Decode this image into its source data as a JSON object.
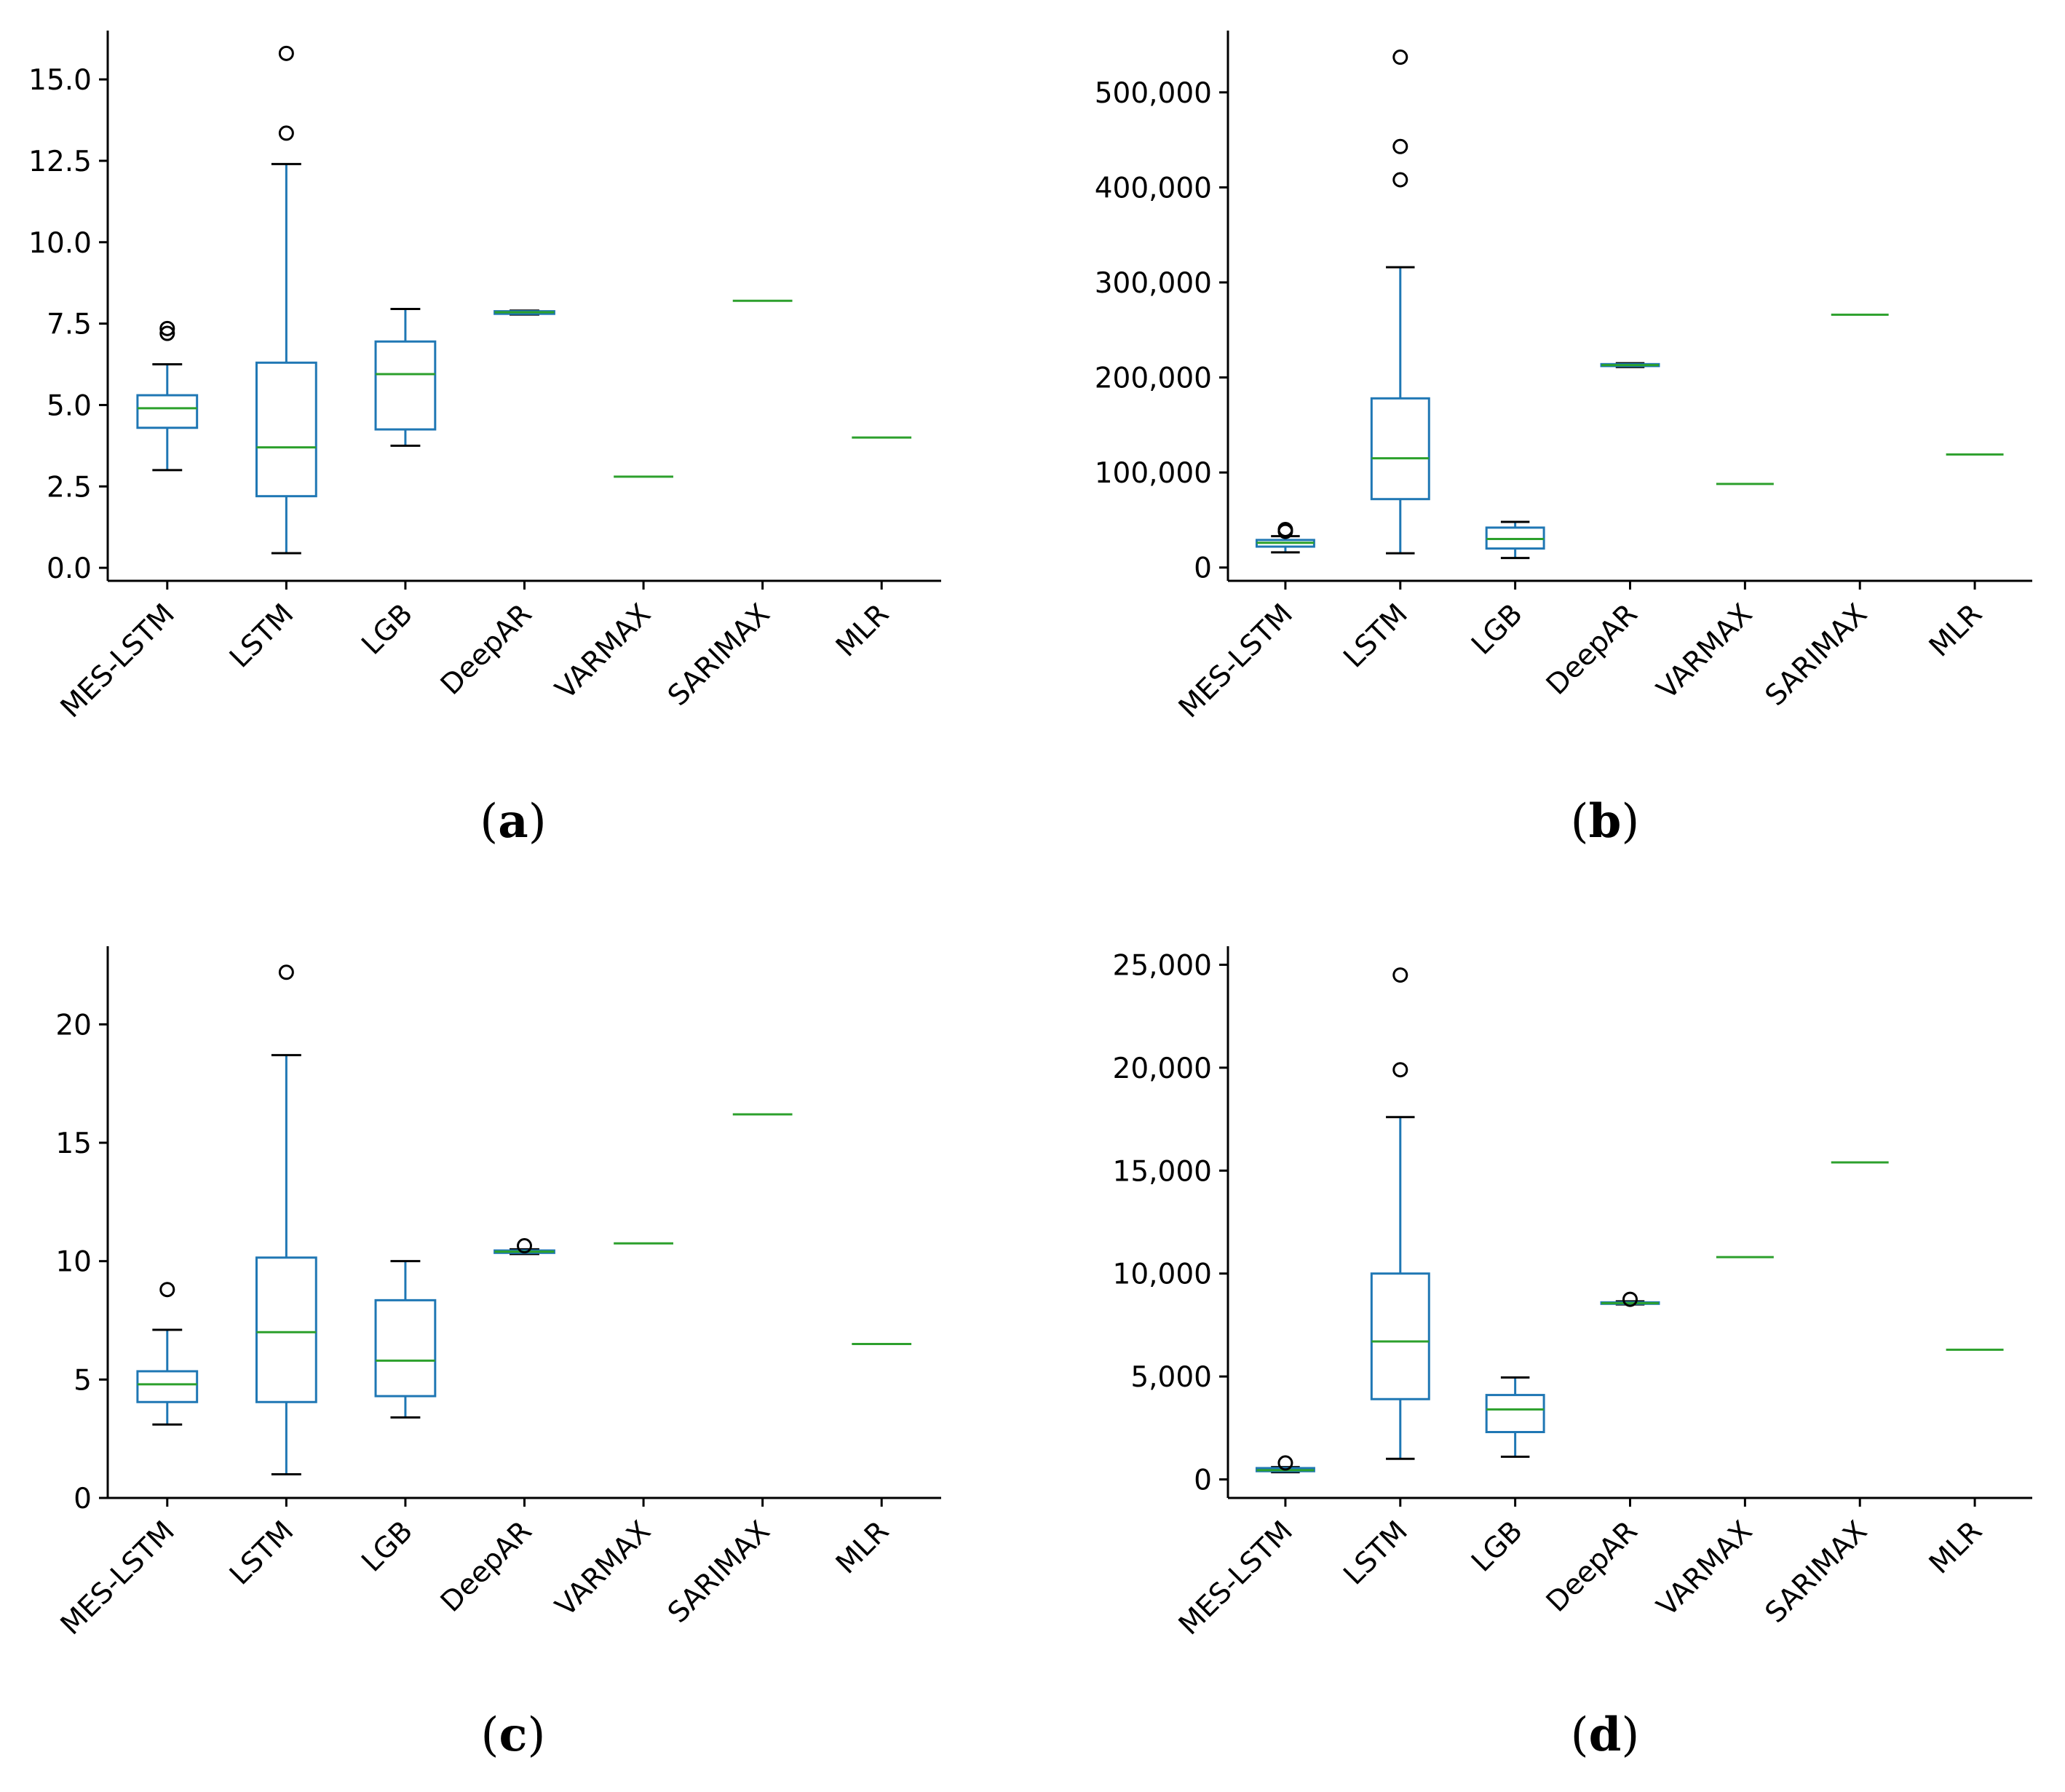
{
  "figure_labels": [
    "(a)",
    "(b)",
    "(c)",
    "(d)"
  ],
  "colors": {
    "box": "#1f77b4",
    "median": "#2ca02c",
    "whisker": "#000000",
    "axis": "#000000",
    "flier": "#000000"
  },
  "chart_data": [
    {
      "type": "box",
      "panel": "a",
      "caption_letter": "a",
      "categories": [
        "MES-LSTM",
        "LSTM",
        "LGB",
        "DeepAR",
        "VARMAX",
        "SARIMAX",
        "MLR"
      ],
      "ylim": [
        -0.4,
        16.5
      ],
      "yticks": [
        0,
        2.5,
        5,
        7.5,
        10,
        12.5,
        15
      ],
      "ytick_labels": [
        "0.0",
        "2.5",
        "5.0",
        "7.5",
        "10.0",
        "12.5",
        "15.0"
      ],
      "boxes": [
        {
          "whislo": 3.0,
          "q1": 4.3,
          "med": 4.9,
          "q3": 5.3,
          "whishi": 6.25,
          "fliers": [
            7.2,
            7.35
          ]
        },
        {
          "whislo": 0.45,
          "q1": 2.2,
          "med": 3.7,
          "q3": 6.3,
          "whishi": 12.4,
          "fliers": [
            13.35,
            15.8
          ]
        },
        {
          "whislo": 3.75,
          "q1": 4.25,
          "med": 5.95,
          "q3": 6.95,
          "whishi": 7.95,
          "fliers": []
        },
        {
          "whislo": 7.78,
          "q1": 7.8,
          "med": 7.85,
          "q3": 7.88,
          "whishi": 7.9,
          "fliers": []
        },
        {
          "whislo": 2.8,
          "q1": 2.8,
          "med": 2.8,
          "q3": 2.8,
          "whishi": 2.8,
          "fliers": []
        },
        {
          "whislo": 8.2,
          "q1": 8.2,
          "med": 8.2,
          "q3": 8.2,
          "whishi": 8.2,
          "fliers": []
        },
        {
          "whislo": 4.0,
          "q1": 4.0,
          "med": 4.0,
          "q3": 4.0,
          "whishi": 4.0,
          "fliers": []
        }
      ]
    },
    {
      "type": "box",
      "panel": "b",
      "caption_letter": "b",
      "categories": [
        "MES-LSTM",
        "LSTM",
        "LGB",
        "DeepAR",
        "VARMAX",
        "SARIMAX",
        "MLR"
      ],
      "ylim": [
        -14000,
        565000
      ],
      "yticks": [
        0,
        100000,
        200000,
        300000,
        400000,
        500000
      ],
      "ytick_labels": [
        "0",
        "100,000",
        "200,000",
        "300,000",
        "400,000",
        "500,000"
      ],
      "boxes": [
        {
          "whislo": 16000,
          "q1": 22000,
          "med": 26000,
          "q3": 29000,
          "whishi": 33000,
          "fliers": [
            38000,
            40000
          ]
        },
        {
          "whislo": 15000,
          "q1": 72000,
          "med": 115000,
          "q3": 178000,
          "whishi": 316000,
          "fliers": [
            408000,
            443000,
            537000
          ]
        },
        {
          "whislo": 10000,
          "q1": 20000,
          "med": 30000,
          "q3": 42000,
          "whishi": 48000,
          "fliers": []
        },
        {
          "whislo": 211000,
          "q1": 212000,
          "med": 213000,
          "q3": 214000,
          "whishi": 215000,
          "fliers": []
        },
        {
          "whislo": 88000,
          "q1": 88000,
          "med": 88000,
          "q3": 88000,
          "whishi": 88000,
          "fliers": []
        },
        {
          "whislo": 266000,
          "q1": 266000,
          "med": 266000,
          "q3": 266000,
          "whishi": 266000,
          "fliers": []
        },
        {
          "whislo": 119000,
          "q1": 119000,
          "med": 119000,
          "q3": 119000,
          "whishi": 119000,
          "fliers": []
        }
      ]
    },
    {
      "type": "box",
      "panel": "c",
      "caption_letter": "c",
      "categories": [
        "MES-LSTM",
        "LSTM",
        "LGB",
        "DeepAR",
        "VARMAX",
        "SARIMAX",
        "MLR"
      ],
      "ylim": [
        0,
        23.3
      ],
      "yticks": [
        0,
        5,
        10,
        15,
        20
      ],
      "ytick_labels": [
        "0",
        "5",
        "10",
        "15",
        "20"
      ],
      "boxes": [
        {
          "whislo": 3.1,
          "q1": 4.05,
          "med": 4.8,
          "q3": 5.35,
          "whishi": 7.1,
          "fliers": [
            8.8
          ]
        },
        {
          "whislo": 1.0,
          "q1": 4.05,
          "med": 7.0,
          "q3": 10.15,
          "whishi": 18.7,
          "fliers": [
            22.2
          ]
        },
        {
          "whislo": 3.4,
          "q1": 4.3,
          "med": 5.8,
          "q3": 8.35,
          "whishi": 10.0,
          "fliers": []
        },
        {
          "whislo": 10.3,
          "q1": 10.35,
          "med": 10.4,
          "q3": 10.45,
          "whishi": 10.5,
          "fliers": [
            10.65
          ]
        },
        {
          "whislo": 10.75,
          "q1": 10.75,
          "med": 10.75,
          "q3": 10.75,
          "whishi": 10.75,
          "fliers": []
        },
        {
          "whislo": 16.2,
          "q1": 16.2,
          "med": 16.2,
          "q3": 16.2,
          "whishi": 16.2,
          "fliers": []
        },
        {
          "whislo": 6.5,
          "q1": 6.5,
          "med": 6.5,
          "q3": 6.5,
          "whishi": 6.5,
          "fliers": []
        }
      ]
    },
    {
      "type": "box",
      "panel": "d",
      "caption_letter": "d",
      "categories": [
        "MES-LSTM",
        "LSTM",
        "LGB",
        "DeepAR",
        "VARMAX",
        "SARIMAX",
        "MLR"
      ],
      "ylim": [
        -900,
        25900
      ],
      "yticks": [
        0,
        5000,
        10000,
        15000,
        20000,
        25000
      ],
      "ytick_labels": [
        "0",
        "5,000",
        "10,000",
        "15,000",
        "20,000",
        "25,000"
      ],
      "boxes": [
        {
          "whislo": 350,
          "q1": 400,
          "med": 450,
          "q3": 550,
          "whishi": 600,
          "fliers": [
            800
          ]
        },
        {
          "whislo": 1000,
          "q1": 3900,
          "med": 6700,
          "q3": 10000,
          "whishi": 17600,
          "fliers": [
            19900,
            24500
          ]
        },
        {
          "whislo": 1100,
          "q1": 2300,
          "med": 3400,
          "q3": 4100,
          "whishi": 4950,
          "fliers": []
        },
        {
          "whislo": 8500,
          "q1": 8530,
          "med": 8560,
          "q3": 8600,
          "whishi": 8650,
          "fliers": [
            8750
          ]
        },
        {
          "whislo": 10800,
          "q1": 10800,
          "med": 10800,
          "q3": 10800,
          "whishi": 10800,
          "fliers": []
        },
        {
          "whislo": 15400,
          "q1": 15400,
          "med": 15400,
          "q3": 15400,
          "whishi": 15400,
          "fliers": []
        },
        {
          "whislo": 6300,
          "q1": 6300,
          "med": 6300,
          "q3": 6300,
          "whishi": 6300,
          "fliers": []
        }
      ]
    }
  ]
}
